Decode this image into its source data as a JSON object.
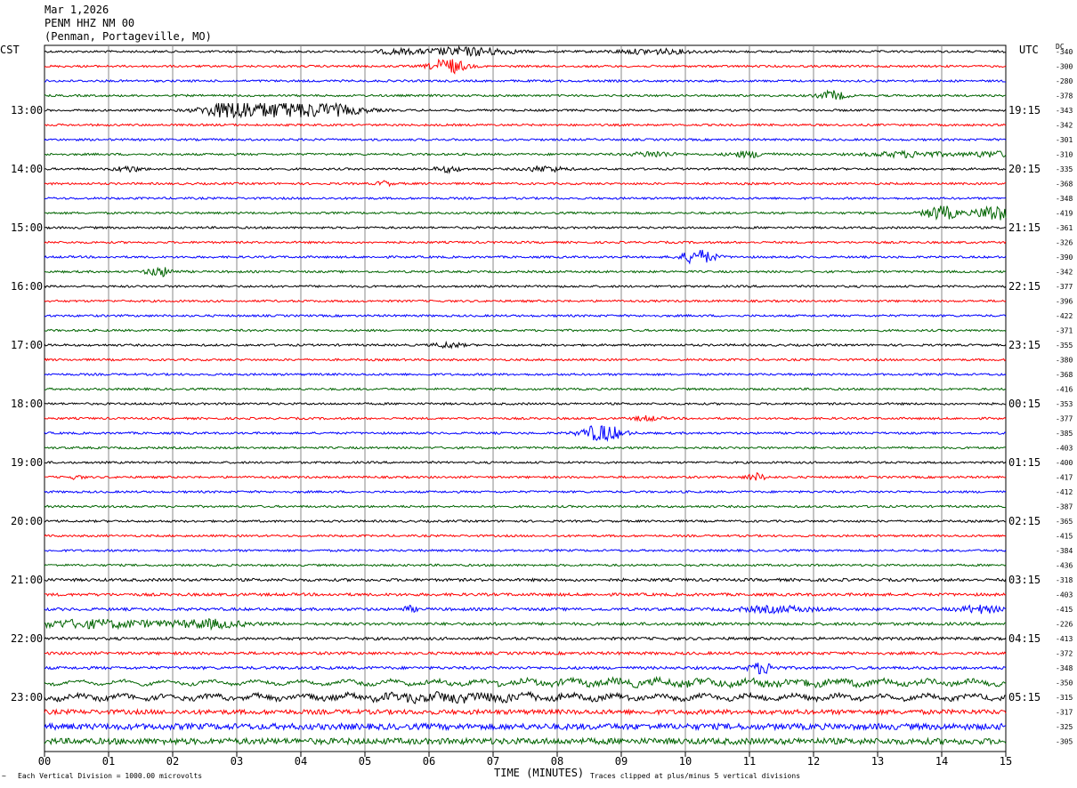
{
  "header": {
    "date": "Mar 1,2026",
    "station": "PENM HHZ NM 00",
    "location": "(Penman, Portageville, MO)"
  },
  "left_label": "CST",
  "right_label": "UTC",
  "dc_label": "DC",
  "footer": {
    "scale": "Each Vertical Division = 1000.00 microvolts",
    "xlabel": "TIME (MINUTES)",
    "clip_note": "Traces clipped at plus/minus 5 vertical divisions",
    "corner_mark": "~"
  },
  "chart_data": {
    "type": "line",
    "title": "PENM HHZ NM 00",
    "xlabel": "TIME (MINUTES)",
    "xlim": [
      0,
      15
    ],
    "x_ticks": [
      "00",
      "01",
      "02",
      "03",
      "04",
      "05",
      "06",
      "07",
      "08",
      "09",
      "10",
      "11",
      "12",
      "13",
      "14",
      "15"
    ],
    "cst_hour_labels": [
      "13:00",
      "14:00",
      "15:00",
      "16:00",
      "17:00",
      "18:00",
      "19:00",
      "20:00",
      "21:00",
      "22:00",
      "23:00"
    ],
    "utc_hour_labels": [
      "19:15",
      "20:15",
      "21:15",
      "22:15",
      "23:15",
      "00:15",
      "01:15",
      "02:15",
      "03:15",
      "04:15",
      "05:15"
    ],
    "trace_colors": [
      "#000000",
      "#ff0000",
      "#0000ff",
      "#006400"
    ],
    "dc_offsets": [
      "-340",
      "-300",
      "-280",
      "-378",
      "-343",
      "-342",
      "-301",
      "-310",
      "-335",
      "-368",
      "-348",
      "-419",
      "-361",
      "-326",
      "-390",
      "-342",
      "-377",
      "-396",
      "-422",
      "-371",
      "-355",
      "-380",
      "-368",
      "-416",
      "-353",
      "-377",
      "-385",
      "-403",
      "-400",
      "-417",
      "-412",
      "-387",
      "-365",
      "-415",
      "-384",
      "-436",
      "-318",
      "-403",
      "-415",
      "-226",
      "-413",
      "-372",
      "-348",
      "-350",
      "-315",
      "-317",
      "-325",
      "-305"
    ],
    "trace_count": 48,
    "grid": true
  }
}
